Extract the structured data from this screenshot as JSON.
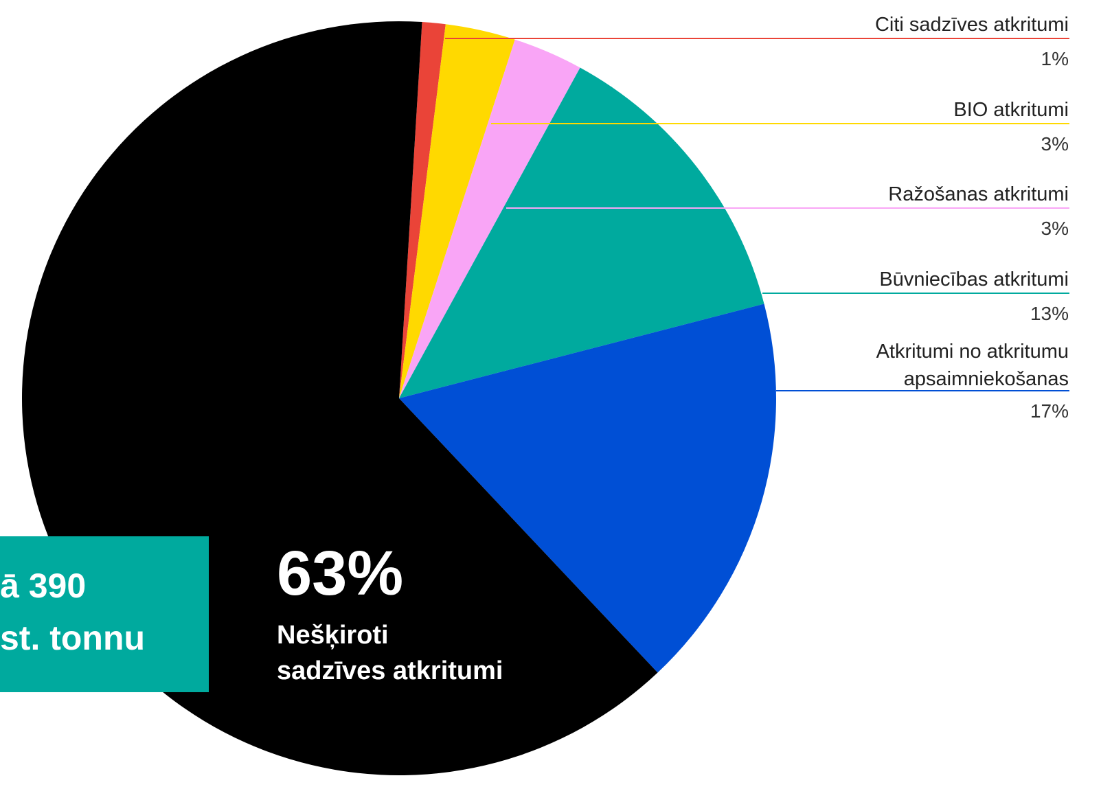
{
  "chart_data": {
    "type": "pie",
    "categories": [
      "Citi sadzīves atkritumi",
      "BIO atkritumi",
      "Ražošanas atkritumi",
      "Būvniecības atkritumi",
      "Atkritumi no atkritumu apsaimniekošanas",
      "Nešķiroti sadzīves atkritumi"
    ],
    "values": [
      1,
      3,
      3,
      13,
      17,
      63
    ],
    "value_labels": [
      "1%",
      "3%",
      "3%",
      "13%",
      "17%",
      "63%"
    ],
    "colors": [
      "#ea4438",
      "#ffd900",
      "#f9a5f6",
      "#00aa9e",
      "#004fd5",
      "#000000"
    ],
    "annotation": {
      "lines": [
        "ā 390",
        "st. tonnu"
      ],
      "color": "#00aa9e"
    }
  }
}
